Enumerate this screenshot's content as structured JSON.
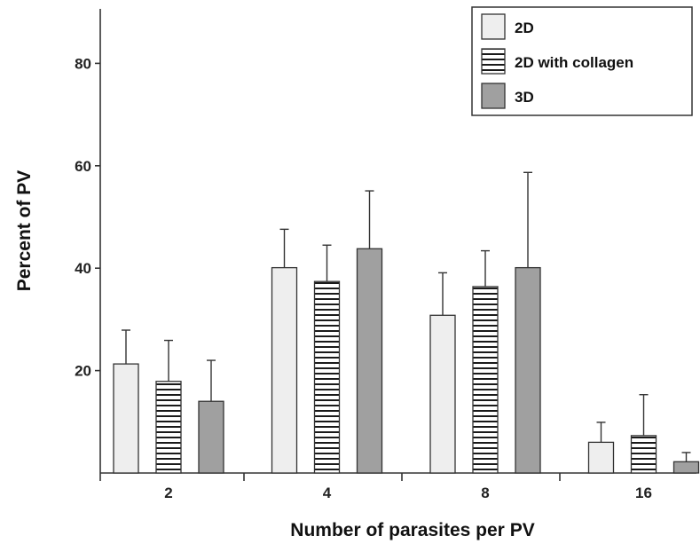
{
  "chart_data": {
    "type": "bar",
    "title": "",
    "xlabel": "Number of parasites per PV",
    "ylabel": "Percent of PV",
    "categories": [
      "2",
      "4",
      "8",
      "16"
    ],
    "ylim": [
      0,
      90
    ],
    "yticks": [
      20,
      40,
      60,
      80
    ],
    "legend_position": "top-right",
    "grid": false,
    "series": [
      {
        "name": "2D",
        "values": [
          21.3,
          40.1,
          30.8,
          6.0
        ],
        "error": [
          6.6,
          7.5,
          8.3,
          3.9
        ],
        "fill": "plain",
        "color": "#eeeeee"
      },
      {
        "name": "2D with collagen",
        "values": [
          17.9,
          37.4,
          36.4,
          7.3
        ],
        "error": [
          8.0,
          7.1,
          7.0,
          8.0
        ],
        "fill": "striped",
        "color": "#ffffff"
      },
      {
        "name": "3D",
        "values": [
          14.0,
          43.8,
          40.1,
          2.2
        ],
        "error": [
          8.0,
          11.3,
          18.6,
          1.8
        ],
        "fill": "plain",
        "color": "#a0a0a0"
      }
    ]
  }
}
